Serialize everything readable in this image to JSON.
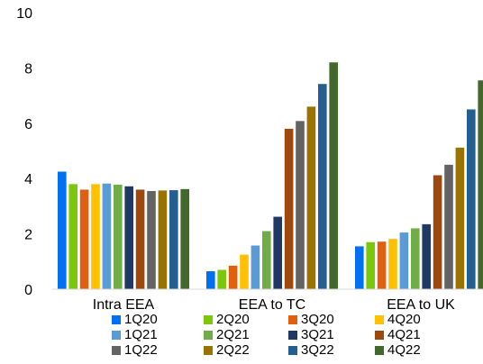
{
  "chart_data": {
    "type": "bar",
    "title": "",
    "xlabel": "",
    "ylabel": "",
    "ylim": [
      0,
      10
    ],
    "yticks": [
      0,
      2,
      4,
      6,
      8,
      10
    ],
    "grid": false,
    "legend_placement": "bottom",
    "categories": [
      "Intra EEA",
      "EEA to TC",
      "EEA to UK"
    ],
    "series": [
      {
        "name": "1Q20",
        "color": "#0070f0",
        "values": [
          4.25,
          0.65,
          1.55
        ]
      },
      {
        "name": "2Q20",
        "color": "#7ac70c",
        "values": [
          3.8,
          0.7,
          1.7
        ]
      },
      {
        "name": "3Q20",
        "color": "#e06010",
        "values": [
          3.6,
          0.85,
          1.72
        ]
      },
      {
        "name": "4Q20",
        "color": "#ffc000",
        "values": [
          3.8,
          1.25,
          1.82
        ]
      },
      {
        "name": "1Q21",
        "color": "#5b9bd5",
        "values": [
          3.82,
          1.58,
          2.05
        ]
      },
      {
        "name": "2Q21",
        "color": "#70ad47",
        "values": [
          3.78,
          2.1,
          2.2
        ]
      },
      {
        "name": "3Q21",
        "color": "#203864",
        "values": [
          3.72,
          2.62,
          2.35
        ]
      },
      {
        "name": "4Q21",
        "color": "#9e480e",
        "values": [
          3.6,
          5.8,
          4.12
        ]
      },
      {
        "name": "1Q22",
        "color": "#636363",
        "values": [
          3.55,
          6.08,
          4.5
        ]
      },
      {
        "name": "2Q22",
        "color": "#997300",
        "values": [
          3.57,
          6.6,
          5.12
        ]
      },
      {
        "name": "3Q22",
        "color": "#255e91",
        "values": [
          3.58,
          7.42,
          6.5
        ]
      },
      {
        "name": "4Q22",
        "color": "#43682b",
        "values": [
          3.62,
          8.2,
          7.55
        ]
      }
    ]
  }
}
